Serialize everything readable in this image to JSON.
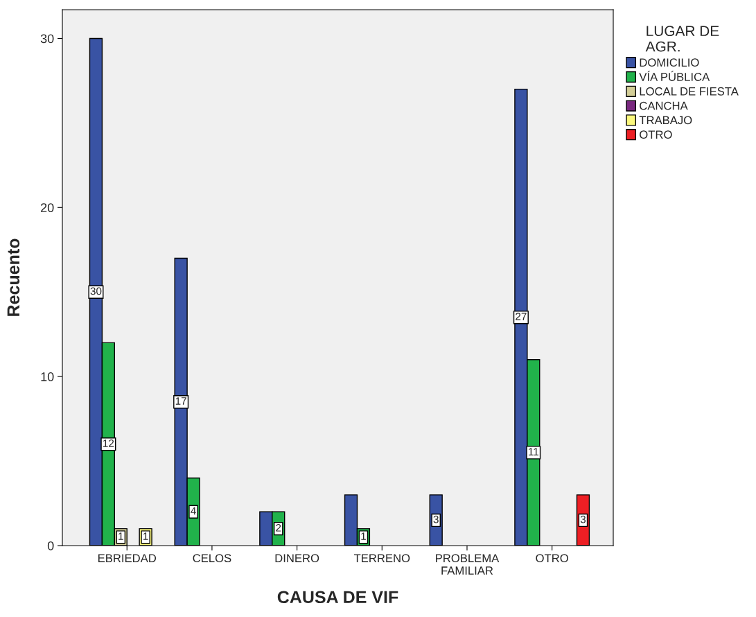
{
  "chart_data": {
    "type": "bar",
    "xlabel": "CAUSA DE VIF",
    "ylabel": "Recuento",
    "legend_title": "LUGAR DE\nAGR.",
    "categories": [
      "EBRIEDAD",
      "CELOS",
      "DINERO",
      "TERRENO",
      "PROBLEMA\nFAMILIAR",
      "OTRO"
    ],
    "series": [
      {
        "name": "DOMICILIO",
        "color": "#3953a4",
        "values": [
          30,
          17,
          2,
          3,
          3,
          27
        ],
        "value_labels": [
          "30",
          "17",
          null,
          null,
          "3",
          "27"
        ]
      },
      {
        "name": "VÍA PÚBLICA",
        "color": "#21b24b",
        "values": [
          12,
          4,
          2,
          1,
          null,
          11
        ],
        "value_labels": [
          "12",
          "4",
          "2",
          "1",
          null,
          "11"
        ]
      },
      {
        "name": "LOCAL DE FIESTA",
        "color": "#d3ce97",
        "values": [
          1,
          null,
          null,
          null,
          null,
          null
        ],
        "value_labels": [
          "1",
          null,
          null,
          null,
          null,
          null
        ]
      },
      {
        "name": "CANCHA",
        "color": "#79287f",
        "values": [
          null,
          null,
          null,
          null,
          null,
          null
        ],
        "value_labels": [
          null,
          null,
          null,
          null,
          null,
          null
        ]
      },
      {
        "name": "TRABAJO",
        "color": "#fbf87d",
        "values": [
          1,
          null,
          null,
          null,
          null,
          null
        ],
        "value_labels": [
          "1",
          null,
          null,
          null,
          null,
          null
        ]
      },
      {
        "name": "OTRO",
        "color": "#ed1f24",
        "values": [
          null,
          null,
          null,
          null,
          null,
          3
        ],
        "value_labels": [
          null,
          null,
          null,
          null,
          null,
          "3"
        ]
      }
    ],
    "ylim": [
      0,
      31.7
    ],
    "yticks": [
      0,
      10,
      20,
      30
    ],
    "grid": false,
    "legend": "right"
  }
}
